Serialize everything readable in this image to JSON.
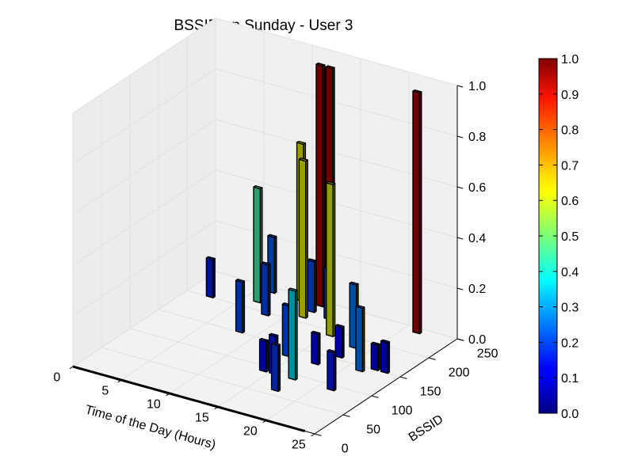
{
  "chart_data": {
    "type": "bar3d",
    "title": "BSSID on Sunday - User 3",
    "xlabel": "Time of the Day (Hours)",
    "ylabel": "BSSID",
    "zlabel": "",
    "xlim": [
      0,
      25
    ],
    "ylim": [
      0,
      250
    ],
    "zlim": [
      0,
      1.0
    ],
    "x_ticks": [
      "0",
      "5",
      "10",
      "15",
      "20",
      "25"
    ],
    "y_ticks": [
      "0",
      "50",
      "100",
      "150",
      "200",
      "250"
    ],
    "z_ticks": [
      "0.0",
      "0.2",
      "0.4",
      "0.6",
      "0.8",
      "1.0"
    ],
    "colorbar": {
      "colormap": "jet",
      "range": [
        0,
        1
      ],
      "ticks": [
        "0.0",
        "0.1",
        "0.2",
        "0.3",
        "0.4",
        "0.5",
        "0.6",
        "0.7",
        "0.8",
        "0.9",
        "1.0"
      ]
    },
    "grid": true,
    "bars": [
      {
        "hour": 2,
        "bssid": 200,
        "value": 0.15
      },
      {
        "hour": 6,
        "bssid": 240,
        "value": 0.22
      },
      {
        "hour": 6,
        "bssid": 215,
        "value": 0.45
      },
      {
        "hour": 8,
        "bssid": 195,
        "value": 0.2
      },
      {
        "hour": 8,
        "bssid": 150,
        "value": 0.2
      },
      {
        "hour": 9,
        "bssid": 240,
        "value": 0.62
      },
      {
        "hour": 11,
        "bssid": 240,
        "value": 0.95
      },
      {
        "hour": 11,
        "bssid": 225,
        "value": 0.2
      },
      {
        "hour": 11,
        "bssid": 210,
        "value": 0.62
      },
      {
        "hour": 12,
        "bssid": 240,
        "value": 0.95
      },
      {
        "hour": 13,
        "bssid": 220,
        "value": 0.2
      },
      {
        "hour": 14,
        "bssid": 130,
        "value": 0.2
      },
      {
        "hour": 14,
        "bssid": 90,
        "value": 0.12
      },
      {
        "hour": 15,
        "bssid": 190,
        "value": 0.6
      },
      {
        "hour": 15,
        "bssid": 90,
        "value": 0.15
      },
      {
        "hour": 17,
        "bssid": 130,
        "value": 0.12
      },
      {
        "hour": 17,
        "bssid": 90,
        "value": 0.35
      },
      {
        "hour": 17,
        "bssid": 60,
        "value": 0.18
      },
      {
        "hour": 18,
        "bssid": 180,
        "value": 0.25
      },
      {
        "hour": 18,
        "bssid": 155,
        "value": 0.12
      },
      {
        "hour": 21,
        "bssid": 240,
        "value": 0.95
      },
      {
        "hour": 21,
        "bssid": 140,
        "value": 0.25
      },
      {
        "hour": 21,
        "bssid": 90,
        "value": 0.15
      },
      {
        "hour": 22,
        "bssid": 150,
        "value": 0.1
      },
      {
        "hour": 23,
        "bssid": 150,
        "value": 0.12
      }
    ]
  }
}
